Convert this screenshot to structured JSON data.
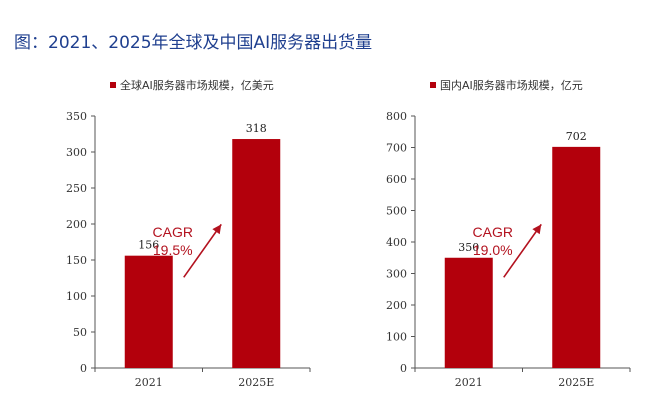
{
  "figure_title": "图：2021、2025年全球及中国AI服务器出货量",
  "colors": {
    "bar": "#b3000c",
    "title": "#1f3f8f",
    "annotation": "#b3121f",
    "axis": "#555555"
  },
  "chart_data": [
    {
      "type": "bar",
      "categories": [
        "2021",
        "2025E"
      ],
      "series": [
        {
          "name": "全球AI服务器市场规模，亿美元",
          "values": [
            156,
            318
          ]
        }
      ],
      "data_labels": [
        "156",
        "318"
      ],
      "ylim": [
        0,
        350
      ],
      "yticks": [
        0,
        50,
        100,
        150,
        200,
        250,
        300,
        350
      ],
      "legend_position": "top",
      "annotation": {
        "line1": "CAGR",
        "line2": "19.5%"
      },
      "grid": false
    },
    {
      "type": "bar",
      "categories": [
        "2021",
        "2025E"
      ],
      "series": [
        {
          "name": "国内AI服务器市场规模，亿元",
          "values": [
            350,
            702
          ]
        }
      ],
      "data_labels": [
        "350",
        "702"
      ],
      "ylim": [
        0,
        800
      ],
      "yticks": [
        0,
        100,
        200,
        300,
        400,
        500,
        600,
        700,
        800
      ],
      "legend_position": "top",
      "annotation": {
        "line1": "CAGR",
        "line2": "19.0%"
      },
      "grid": false
    }
  ]
}
